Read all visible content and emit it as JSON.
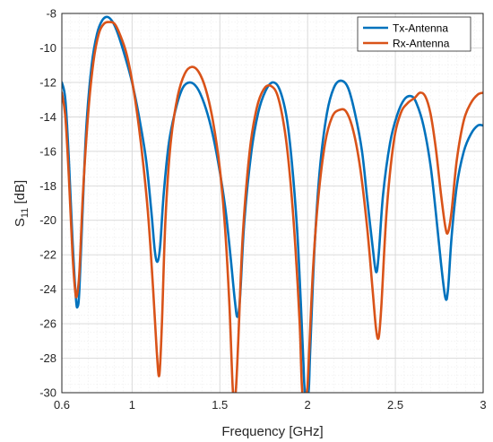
{
  "chart_data": {
    "type": "line",
    "title": "",
    "xlabel": "Frequency [GHz]",
    "ylabel_main": "S",
    "ylabel_sub": "11",
    "ylabel_unit": " [dB]",
    "xlim": [
      0.6,
      3
    ],
    "ylim": [
      -30,
      -8
    ],
    "xticks": [
      0.6,
      1,
      1.5,
      2,
      2.5,
      3
    ],
    "xtick_labels": [
      "0.6",
      "1",
      "1.5",
      "2",
      "2.5",
      "3"
    ],
    "yticks": [
      -30,
      -28,
      -26,
      -24,
      -22,
      -20,
      -18,
      -16,
      -14,
      -12,
      -10,
      -8
    ],
    "ytick_labels": [
      "-30",
      "-28",
      "-26",
      "-24",
      "-22",
      "-20",
      "-18",
      "-16",
      "-14",
      "-12",
      "-10",
      "-8"
    ],
    "grid": true,
    "minor_grid": true,
    "legend_position": "top-right",
    "series": [
      {
        "name": "Tx-Antenna",
        "color": "#0072BD",
        "points": [
          [
            0.6,
            -12.0
          ],
          [
            0.62,
            -13.0
          ],
          [
            0.64,
            -16.5
          ],
          [
            0.66,
            -21.0
          ],
          [
            0.68,
            -24.5
          ],
          [
            0.69,
            -25.0
          ],
          [
            0.7,
            -24.0
          ],
          [
            0.72,
            -19.0
          ],
          [
            0.74,
            -14.5
          ],
          [
            0.77,
            -11.0
          ],
          [
            0.8,
            -9.2
          ],
          [
            0.83,
            -8.4
          ],
          [
            0.86,
            -8.2
          ],
          [
            0.89,
            -8.5
          ],
          [
            0.92,
            -9.2
          ],
          [
            0.96,
            -10.5
          ],
          [
            1.0,
            -12.0
          ],
          [
            1.04,
            -14.0
          ],
          [
            1.08,
            -16.5
          ],
          [
            1.11,
            -19.5
          ],
          [
            1.13,
            -21.8
          ],
          [
            1.145,
            -22.4
          ],
          [
            1.16,
            -21.5
          ],
          [
            1.18,
            -18.5
          ],
          [
            1.21,
            -15.5
          ],
          [
            1.25,
            -13.5
          ],
          [
            1.29,
            -12.3
          ],
          [
            1.33,
            -12.0
          ],
          [
            1.37,
            -12.3
          ],
          [
            1.41,
            -13.2
          ],
          [
            1.45,
            -14.6
          ],
          [
            1.49,
            -16.6
          ],
          [
            1.53,
            -19.2
          ],
          [
            1.56,
            -22.0
          ],
          [
            1.585,
            -24.6
          ],
          [
            1.6,
            -25.6
          ],
          [
            1.615,
            -24.5
          ],
          [
            1.64,
            -20.0
          ],
          [
            1.68,
            -16.0
          ],
          [
            1.72,
            -13.7
          ],
          [
            1.76,
            -12.5
          ],
          [
            1.8,
            -12.0
          ],
          [
            1.84,
            -12.4
          ],
          [
            1.88,
            -14.0
          ],
          [
            1.91,
            -16.6
          ],
          [
            1.94,
            -20.5
          ],
          [
            1.96,
            -24.5
          ],
          [
            1.975,
            -28.0
          ],
          [
            1.985,
            -30.0
          ],
          [
            2.005,
            -30.0
          ],
          [
            2.015,
            -27.5
          ],
          [
            2.04,
            -21.5
          ],
          [
            2.07,
            -17.0
          ],
          [
            2.11,
            -13.8
          ],
          [
            2.15,
            -12.3
          ],
          [
            2.19,
            -11.9
          ],
          [
            2.23,
            -12.3
          ],
          [
            2.27,
            -13.8
          ],
          [
            2.31,
            -16.0
          ],
          [
            2.34,
            -18.8
          ],
          [
            2.37,
            -21.5
          ],
          [
            2.39,
            -23.0
          ],
          [
            2.405,
            -22.0
          ],
          [
            2.43,
            -18.5
          ],
          [
            2.47,
            -15.5
          ],
          [
            2.51,
            -13.9
          ],
          [
            2.55,
            -13.0
          ],
          [
            2.59,
            -12.8
          ],
          [
            2.62,
            -13.2
          ],
          [
            2.66,
            -14.5
          ],
          [
            2.7,
            -16.8
          ],
          [
            2.73,
            -19.5
          ],
          [
            2.76,
            -22.5
          ],
          [
            2.785,
            -24.5
          ],
          [
            2.8,
            -24.0
          ],
          [
            2.82,
            -21.0
          ],
          [
            2.85,
            -18.0
          ],
          [
            2.89,
            -16.0
          ],
          [
            2.93,
            -15.0
          ],
          [
            2.97,
            -14.5
          ],
          [
            3.0,
            -14.5
          ]
        ]
      },
      {
        "name": "Rx-Antenna",
        "color": "#D95319",
        "points": [
          [
            0.6,
            -12.6
          ],
          [
            0.62,
            -14.0
          ],
          [
            0.64,
            -17.5
          ],
          [
            0.66,
            -21.8
          ],
          [
            0.675,
            -24.0
          ],
          [
            0.685,
            -24.4
          ],
          [
            0.7,
            -23.0
          ],
          [
            0.72,
            -18.5
          ],
          [
            0.75,
            -13.8
          ],
          [
            0.78,
            -10.8
          ],
          [
            0.81,
            -9.2
          ],
          [
            0.84,
            -8.6
          ],
          [
            0.87,
            -8.5
          ],
          [
            0.9,
            -8.6
          ],
          [
            0.93,
            -9.2
          ],
          [
            0.97,
            -10.4
          ],
          [
            1.01,
            -12.5
          ],
          [
            1.05,
            -15.5
          ],
          [
            1.09,
            -19.5
          ],
          [
            1.12,
            -24.0
          ],
          [
            1.14,
            -27.5
          ],
          [
            1.155,
            -29.0
          ],
          [
            1.17,
            -26.0
          ],
          [
            1.19,
            -20.0
          ],
          [
            1.22,
            -15.5
          ],
          [
            1.26,
            -12.8
          ],
          [
            1.3,
            -11.5
          ],
          [
            1.34,
            -11.1
          ],
          [
            1.38,
            -11.4
          ],
          [
            1.42,
            -12.4
          ],
          [
            1.46,
            -14.2
          ],
          [
            1.5,
            -17.0
          ],
          [
            1.53,
            -20.5
          ],
          [
            1.555,
            -25.0
          ],
          [
            1.575,
            -30.0
          ],
          [
            1.59,
            -30.0
          ],
          [
            1.605,
            -27.0
          ],
          [
            1.63,
            -21.0
          ],
          [
            1.67,
            -16.0
          ],
          [
            1.71,
            -13.5
          ],
          [
            1.75,
            -12.4
          ],
          [
            1.79,
            -12.2
          ],
          [
            1.83,
            -12.8
          ],
          [
            1.87,
            -14.8
          ],
          [
            1.9,
            -17.5
          ],
          [
            1.93,
            -21.5
          ],
          [
            1.955,
            -26.0
          ],
          [
            1.97,
            -30.0
          ],
          [
            1.995,
            -30.0
          ],
          [
            2.005,
            -28.5
          ],
          [
            2.03,
            -23.0
          ],
          [
            2.06,
            -18.8
          ],
          [
            2.1,
            -15.5
          ],
          [
            2.14,
            -14.0
          ],
          [
            2.18,
            -13.6
          ],
          [
            2.22,
            -13.7
          ],
          [
            2.26,
            -14.8
          ],
          [
            2.3,
            -17.0
          ],
          [
            2.34,
            -20.5
          ],
          [
            2.37,
            -24.0
          ],
          [
            2.39,
            -26.3
          ],
          [
            2.405,
            -26.8
          ],
          [
            2.42,
            -25.0
          ],
          [
            2.45,
            -19.5
          ],
          [
            2.49,
            -15.5
          ],
          [
            2.53,
            -13.8
          ],
          [
            2.57,
            -13.2
          ],
          [
            2.61,
            -12.9
          ],
          [
            2.64,
            -12.6
          ],
          [
            2.67,
            -12.8
          ],
          [
            2.7,
            -13.8
          ],
          [
            2.73,
            -15.8
          ],
          [
            2.76,
            -18.5
          ],
          [
            2.785,
            -20.4
          ],
          [
            2.8,
            -20.7
          ],
          [
            2.82,
            -19.5
          ],
          [
            2.85,
            -16.5
          ],
          [
            2.89,
            -14.2
          ],
          [
            2.93,
            -13.2
          ],
          [
            2.97,
            -12.7
          ],
          [
            3.0,
            -12.6
          ]
        ]
      }
    ]
  }
}
